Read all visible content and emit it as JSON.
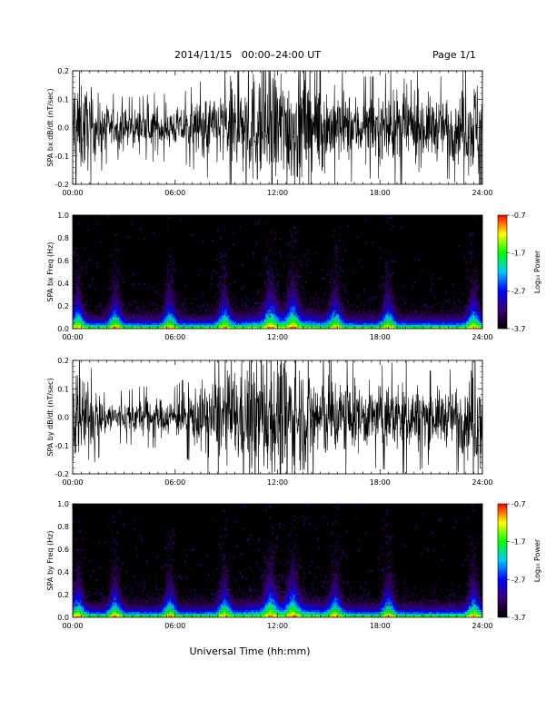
{
  "header": {
    "title": "2014/11/15   00:00–24:00 UT",
    "page": "Page 1/1"
  },
  "xaxis": {
    "label": "Universal Time (hh:mm)",
    "ticks": [
      "00:00",
      "06:00",
      "12:00",
      "18:00",
      "24:00"
    ],
    "range": [
      0,
      24
    ]
  },
  "chart_data": [
    {
      "type": "line",
      "panel": "bx-dbdt",
      "ylabel": "SPA bx dB/dt (nT/sec)",
      "xlim": [
        0,
        24
      ],
      "ylim": [
        -0.2,
        0.2
      ],
      "yticks": [
        "-0.2",
        "-0.1",
        "0.0",
        "0.1",
        "0.2"
      ],
      "envelope_hours": [
        0,
        1,
        2,
        3,
        4,
        5,
        6,
        7,
        8,
        9,
        10,
        11,
        12,
        13,
        14,
        15,
        16,
        17,
        18,
        19,
        20,
        21,
        22,
        23,
        24
      ],
      "envelope_amplitude": [
        0.2,
        0.12,
        0.07,
        0.06,
        0.06,
        0.07,
        0.06,
        0.08,
        0.1,
        0.13,
        0.16,
        0.2,
        0.2,
        0.19,
        0.16,
        0.13,
        0.11,
        0.1,
        0.1,
        0.12,
        0.12,
        0.1,
        0.1,
        0.12,
        0.2
      ],
      "color": "#000000"
    },
    {
      "type": "heatmap",
      "panel": "bx-freq",
      "ylabel": "SPA bx Freq (Hz)",
      "xlim": [
        0,
        24
      ],
      "ylim": [
        0.0,
        1.0
      ],
      "yticks": [
        "0.0",
        "0.2",
        "0.4",
        "0.6",
        "0.8",
        "1.0"
      ],
      "colorbar": {
        "label": "Log₁₀ Power",
        "range": [
          -3.7,
          -0.7
        ],
        "ticks": [
          "-0.7",
          "-1.7",
          "-2.7",
          "-3.7"
        ],
        "colors": [
          "#000000",
          "#3a0070",
          "#0000ff",
          "#00c8ff",
          "#00ff00",
          "#ffff00",
          "#ff0000"
        ]
      },
      "activity_peaks_hours": [
        0.3,
        2.5,
        5.7,
        8.9,
        11.6,
        12.9,
        15.4,
        18.5,
        23.5
      ]
    },
    {
      "type": "line",
      "panel": "by-dbdt",
      "ylabel": "SPA by dB/dt (nT/sec)",
      "xlim": [
        0,
        24
      ],
      "ylim": [
        -0.2,
        0.2
      ],
      "yticks": [
        "-0.2",
        "-0.1",
        "0.0",
        "0.1",
        "0.2"
      ],
      "envelope_hours": [
        0,
        1,
        2,
        3,
        4,
        5,
        6,
        7,
        8,
        9,
        10,
        11,
        12,
        13,
        14,
        15,
        16,
        17,
        18,
        19,
        20,
        21,
        22,
        23,
        24
      ],
      "envelope_amplitude": [
        0.2,
        0.1,
        0.06,
        0.05,
        0.06,
        0.06,
        0.06,
        0.09,
        0.12,
        0.14,
        0.17,
        0.2,
        0.2,
        0.19,
        0.16,
        0.14,
        0.12,
        0.1,
        0.1,
        0.11,
        0.11,
        0.09,
        0.09,
        0.12,
        0.2
      ],
      "color": "#000000"
    },
    {
      "type": "heatmap",
      "panel": "by-freq",
      "ylabel": "SPA by Freq (Hz)",
      "xlim": [
        0,
        24
      ],
      "ylim": [
        0.0,
        1.0
      ],
      "yticks": [
        "0.0",
        "0.2",
        "0.4",
        "0.6",
        "0.8",
        "1.0"
      ],
      "colorbar": {
        "label": "Log₁₀ Power",
        "range": [
          -3.7,
          -0.7
        ],
        "ticks": [
          "-0.7",
          "-1.7",
          "-2.7",
          "-3.7"
        ],
        "colors": [
          "#000000",
          "#3a0070",
          "#0000ff",
          "#00c8ff",
          "#00ff00",
          "#ffff00",
          "#ff0000"
        ]
      },
      "activity_peaks_hours": [
        0.3,
        2.5,
        5.7,
        8.9,
        11.6,
        12.9,
        15.4,
        18.5,
        23.5
      ]
    }
  ]
}
